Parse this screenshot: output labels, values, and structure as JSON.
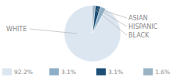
{
  "chart_data": {
    "type": "pie",
    "categories": [
      "WHITE",
      "ASIAN",
      "HISPANIC",
      "BLACK"
    ],
    "values": [
      92.2,
      3.1,
      3.1,
      1.6
    ],
    "value_labels": [
      "92.2%",
      "3.1%",
      "3.1%",
      "1.6%"
    ],
    "colors": [
      "#dce6f1",
      "#8caec8",
      "#1d4f76",
      "#9ab3c5"
    ],
    "legend": "bottom"
  }
}
